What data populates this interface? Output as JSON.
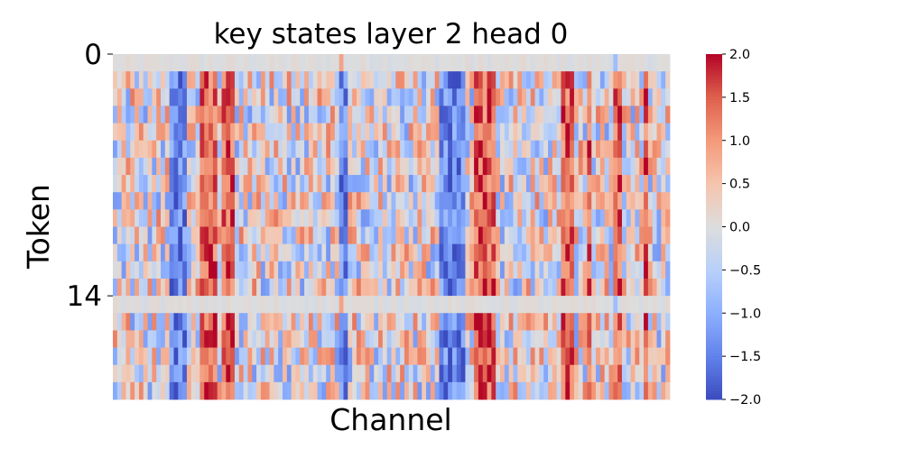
{
  "chart_data": {
    "type": "heatmap",
    "title": "key states layer 2 head 0",
    "xlabel": "Channel",
    "ylabel": "Token",
    "n_rows": 20,
    "n_cols": 128,
    "y_ticks": [
      {
        "value": 0,
        "label": "0"
      },
      {
        "value": 14,
        "label": "14"
      }
    ],
    "x_ticks": [],
    "colormap": "coolwarm",
    "vmin": -2.0,
    "vmax": 2.0,
    "colorbar_ticks": [
      "2.0",
      "1.5",
      "1.0",
      "0.5",
      "0.0",
      "−0.5",
      "−1.0",
      "−1.5",
      "−2.0"
    ],
    "colorbar_tick_values": [
      2.0,
      1.5,
      1.0,
      0.5,
      0.0,
      -0.5,
      -1.0,
      -1.5,
      -2.0
    ],
    "near_constant_rows": [
      0,
      14
    ],
    "strong_positive_channels": [
      20,
      21,
      22,
      23,
      25,
      26,
      27,
      83,
      84,
      85,
      86,
      87,
      103,
      104,
      105,
      109,
      115,
      116,
      122
    ],
    "strong_negative_channels": [
      13,
      14,
      15,
      16,
      52,
      53,
      75,
      76,
      77,
      78,
      79,
      80
    ]
  }
}
